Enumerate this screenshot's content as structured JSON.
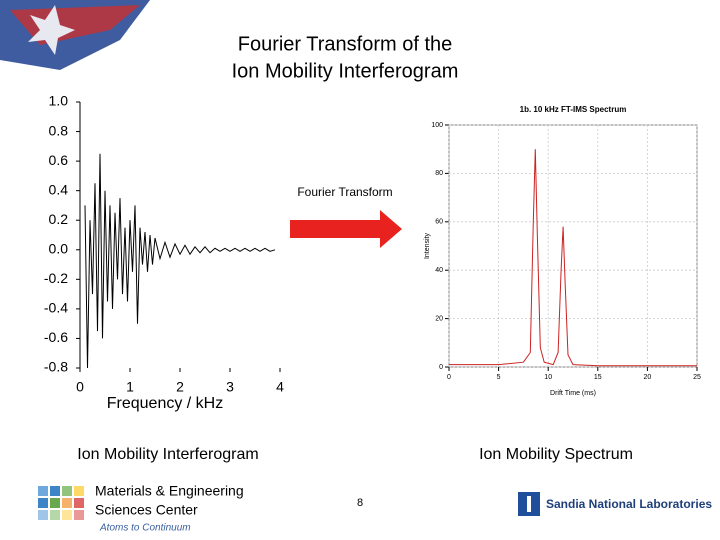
{
  "title": [
    "Fourier Transform of the",
    "Ion Mobility Interferogram"
  ],
  "arrow_label": "Fourier Transform",
  "captions": [
    "Ion Mobility Interferogram",
    "Ion Mobility Spectrum"
  ],
  "footer": {
    "center_name": [
      "Materials & Engineering",
      "Sciences Center"
    ],
    "tagline": "Atoms to Continuum",
    "page": "8",
    "lab": "Sandia National Laboratories"
  },
  "chart_data": [
    {
      "type": "line",
      "x_label": "Frequency / kHz",
      "x": [
        0.1,
        0.15,
        0.2,
        0.25,
        0.3,
        0.35,
        0.4,
        0.45,
        0.5,
        0.55,
        0.6,
        0.65,
        0.7,
        0.75,
        0.8,
        0.85,
        0.9,
        0.95,
        1.0,
        1.05,
        1.1,
        1.15,
        1.2,
        1.25,
        1.3,
        1.35,
        1.4,
        1.45,
        1.5,
        1.6,
        1.7,
        1.8,
        1.9,
        2.0,
        2.1,
        2.2,
        2.3,
        2.4,
        2.5,
        2.6,
        2.7,
        2.8,
        2.9,
        3.0,
        3.1,
        3.2,
        3.3,
        3.4,
        3.5,
        3.6,
        3.7,
        3.8,
        3.9
      ],
      "values": [
        0.3,
        -0.8,
        0.2,
        -0.3,
        0.45,
        -0.55,
        0.65,
        -0.6,
        0.4,
        -0.35,
        0.3,
        -0.4,
        0.25,
        -0.2,
        0.35,
        -0.3,
        0.15,
        -0.35,
        0.2,
        -0.15,
        0.3,
        -0.5,
        0.15,
        -0.1,
        0.12,
        -0.15,
        0.1,
        -0.1,
        0.08,
        -0.06,
        0.05,
        -0.05,
        0.04,
        -0.03,
        0.03,
        -0.03,
        0.02,
        -0.02,
        0.02,
        -0.02,
        0.01,
        -0.01,
        0.01,
        -0.01,
        0.01,
        -0.01,
        0.01,
        -0.01,
        0.01,
        -0.01,
        0.01,
        -0.01,
        0.0
      ],
      "color": "#000000",
      "xlim": [
        0,
        4
      ],
      "xticks": [
        0,
        1,
        2,
        3,
        4
      ],
      "ylim": [
        -0.8,
        1.0
      ],
      "yticks": [
        {
          "value": 1,
          "label": "1.0"
        },
        0.8,
        0.6,
        0.4,
        0.2,
        {
          "value": 0,
          "label": "0.0"
        },
        -0.2,
        -0.4,
        -0.6,
        -0.8
      ],
      "grid": false
    },
    {
      "type": "line",
      "title": "1b. 10 kHz FT-IMS Spectrum",
      "x_label": "Drift Time (ms)",
      "y_label": "Intensity",
      "x": [
        0,
        5,
        7.5,
        8.2,
        8.5,
        8.7,
        8.9,
        9.2,
        9.6,
        10.5,
        11,
        11.3,
        11.5,
        11.7,
        12,
        12.5,
        15,
        20,
        25
      ],
      "values": [
        1,
        1,
        2,
        6,
        60,
        90,
        55,
        8,
        2,
        1,
        6,
        40,
        58,
        35,
        5,
        1,
        0.5,
        0.5,
        0.5
      ],
      "color": "#cc2222",
      "xlim": [
        0,
        25
      ],
      "xticks": [
        0,
        5,
        10,
        15,
        20,
        25
      ],
      "ylim": [
        0,
        100
      ],
      "yticks": [
        0,
        20,
        40,
        60,
        80,
        100
      ],
      "grid": true
    }
  ]
}
